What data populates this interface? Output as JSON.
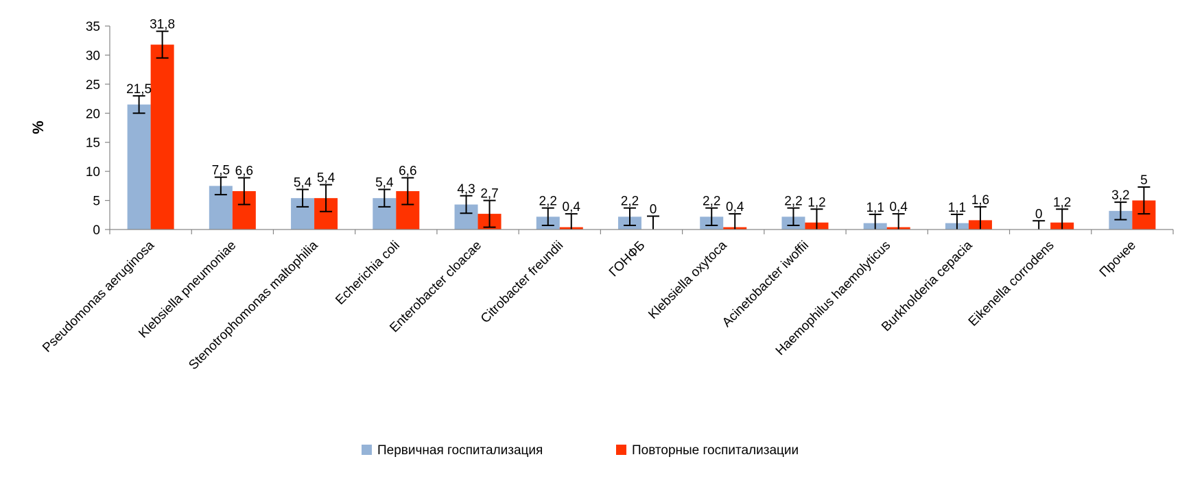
{
  "chart_data": {
    "type": "bar",
    "ylabel": "%",
    "ylim": [
      0,
      35
    ],
    "yticks": [
      0,
      5,
      10,
      15,
      20,
      25,
      30,
      35
    ],
    "grid": false,
    "legend_position": "bottom",
    "categories": [
      "Pseudomonas aeruginosa",
      "Klebsiella pneumoniae",
      "Stenotrophomonas maltophilia",
      "Echerichia coli",
      "Enterobacter cloacae",
      "Citrobacter freundii",
      "ГОНФБ",
      "Klebsiella oxytoca",
      "Acinetobacter iwoffii",
      "Haemophilus haemolyticus",
      "Burkholderia cepacia",
      "Eikenella corrodens",
      "Прочее"
    ],
    "series": [
      {
        "name": "Первичная госпитализация",
        "color": "#95B3D7",
        "values": [
          21.5,
          7.5,
          5.4,
          5.4,
          4.3,
          2.2,
          2.2,
          2.2,
          2.2,
          1.1,
          1.1,
          0,
          3.2
        ],
        "labels": [
          "21,5",
          "7,5",
          "5,4",
          "5,4",
          "4,3",
          "2,2",
          "2,2",
          "2,2",
          "2,2",
          "1,1",
          "1,1",
          "0",
          "3,2"
        ],
        "errors": [
          1.5,
          1.5,
          1.5,
          1.5,
          1.5,
          1.5,
          1.5,
          1.5,
          1.5,
          1.5,
          1.5,
          1.5,
          1.5
        ]
      },
      {
        "name": "Повторные госпитализации",
        "color": "#FF3300",
        "values": [
          31.8,
          6.6,
          5.4,
          6.6,
          2.7,
          0.4,
          0,
          0.4,
          1.2,
          0.4,
          1.6,
          1.2,
          5
        ],
        "labels": [
          "31,8",
          "6,6",
          "5,4",
          "6,6",
          "2,7",
          "0,4",
          "0",
          "0,4",
          "1,2",
          "0,4",
          "1,6",
          "1,2",
          "5"
        ],
        "errors": [
          2.3,
          2.3,
          2.3,
          2.3,
          2.3,
          2.3,
          2.3,
          2.3,
          2.3,
          2.3,
          2.3,
          2.3,
          2.3
        ]
      }
    ]
  }
}
